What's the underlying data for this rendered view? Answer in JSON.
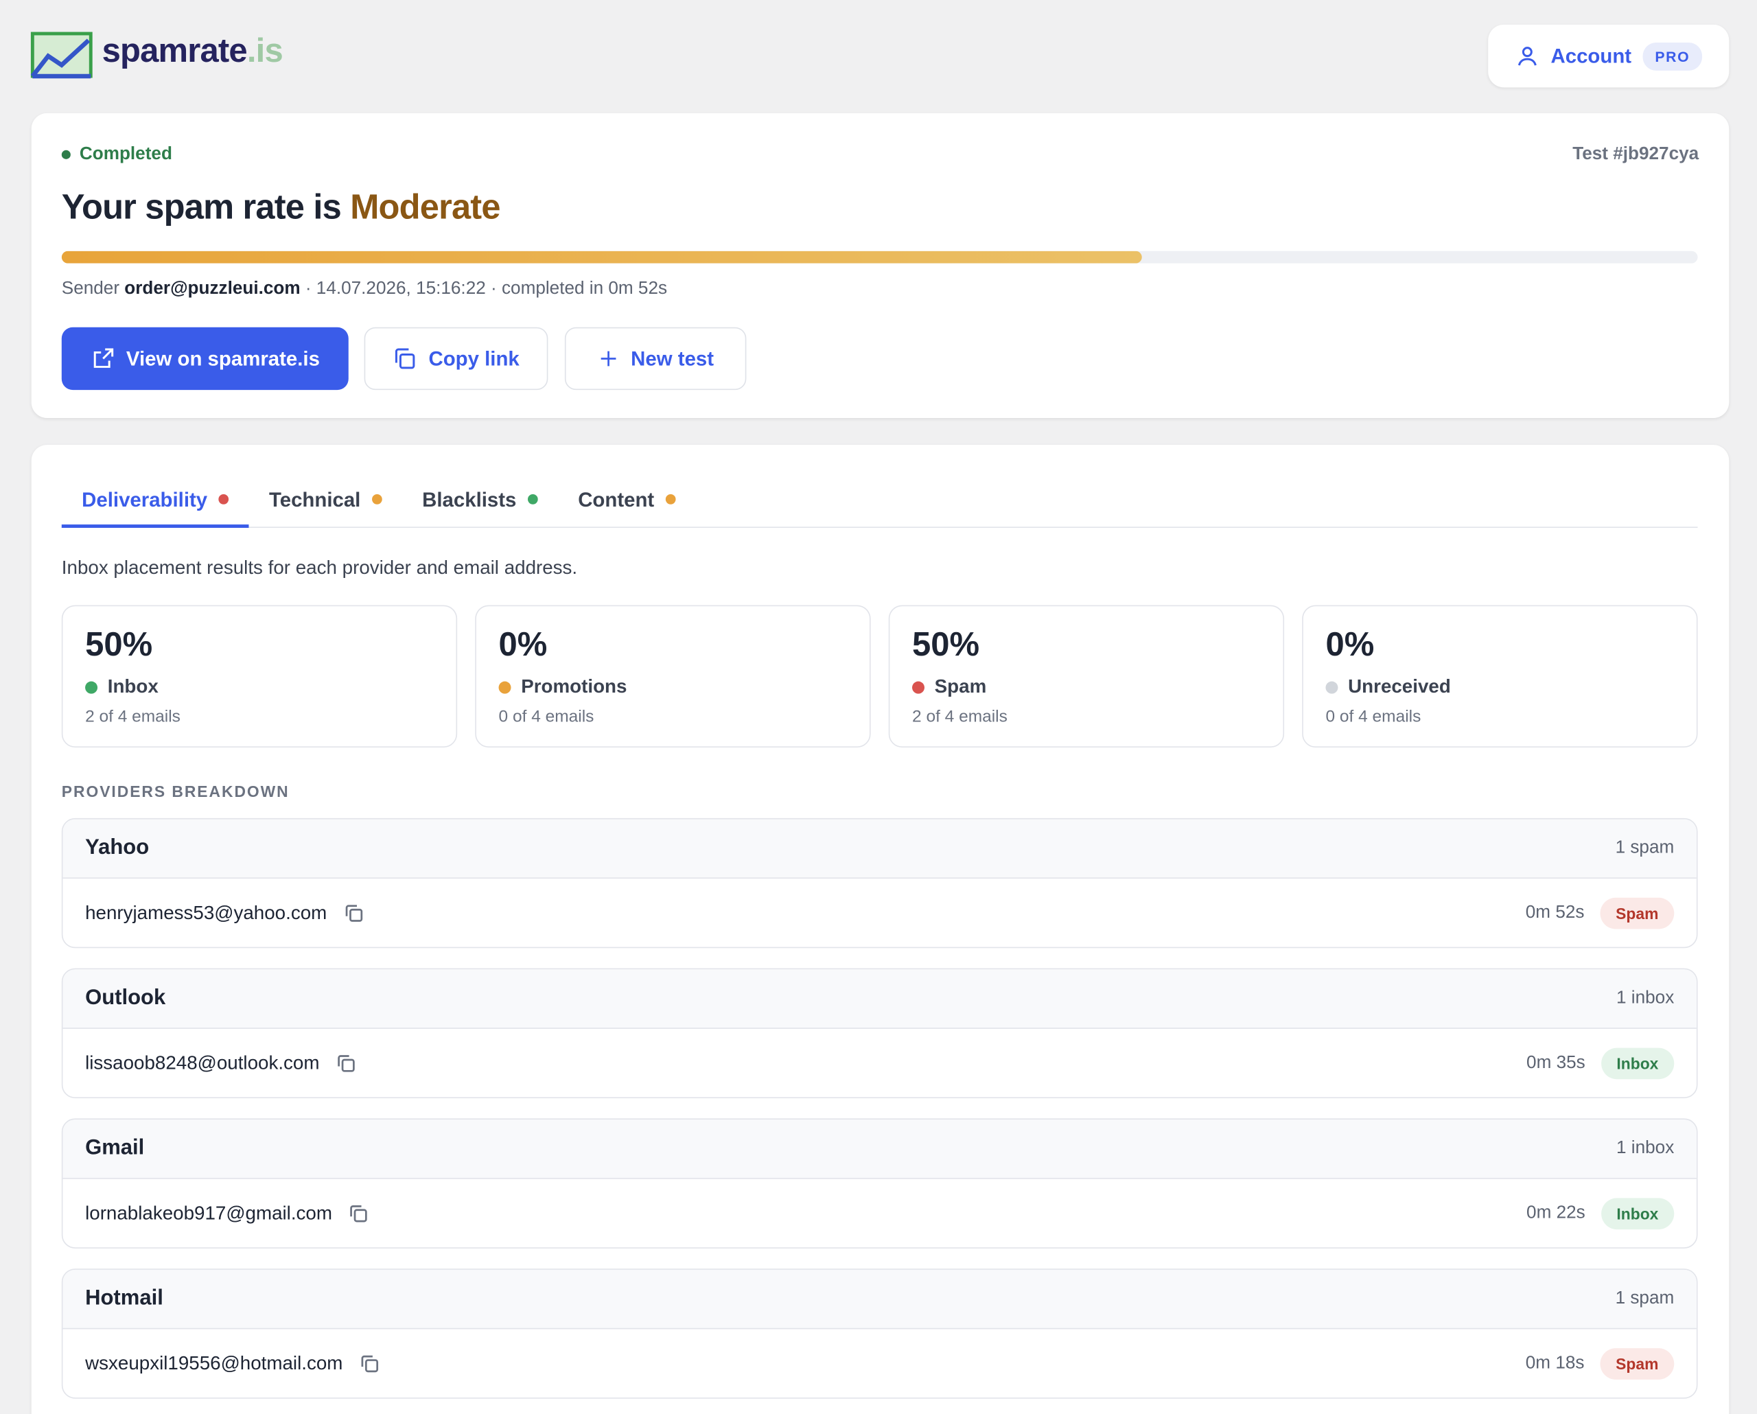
{
  "header": {
    "logo_name": "spamrate",
    "logo_tld": ".is",
    "account": "Account",
    "badge": "PRO"
  },
  "summary": {
    "status": "Completed",
    "test_id": "Test #jb927cya",
    "title": "Your spam rate is",
    "rating": "Moderate",
    "spam_rate_bar": 66,
    "sender_label": "Sender",
    "sender": "order@puzzleui.com",
    "separator": "·",
    "date": "14.07.2026, 15:16:22",
    "duration": "completed in 0m 52s",
    "buttons": [
      "View on spamrate.is",
      "Copy link",
      "New test"
    ]
  },
  "tabs": [
    {
      "name": "Deliverability",
      "color": "#d9534f"
    },
    {
      "name": "Technical",
      "color": "#e9a23b"
    },
    {
      "name": "Blacklists",
      "color": "#3fa866"
    },
    {
      "name": "Content",
      "color": "#e9a23b"
    }
  ],
  "description": "Inbox placement results for each provider and email address.",
  "stats": [
    {
      "value": "50%",
      "label": "Inbox",
      "detail": "2 of 4 emails",
      "color": "#3fa866"
    },
    {
      "value": "0%",
      "label": "Promotions",
      "detail": "0 of 4 emails",
      "color": "#e9a23b"
    },
    {
      "value": "50%",
      "label": "Spam",
      "detail": "2 of 4 emails",
      "color": "#d9534f"
    },
    {
      "value": "0%",
      "label": "Unreceived",
      "detail": "0 of 4 emails",
      "color": "#d1d5db"
    }
  ],
  "section_title": "PROVIDERS BREAKDOWN",
  "providers": [
    {
      "name": "Yahoo",
      "summary": "1 spam",
      "email": "henryjamess53@yahoo.com",
      "time": "0m 52s",
      "status": "Spam"
    },
    {
      "name": "Outlook",
      "summary": "1 inbox",
      "email": "lissaoob8248@outlook.com",
      "time": "0m 35s",
      "status": "Inbox"
    },
    {
      "name": "Gmail",
      "summary": "1 inbox",
      "email": "lornablakeob917@gmail.com",
      "time": "0m 22s",
      "status": "Inbox"
    },
    {
      "name": "Hotmail",
      "summary": "1 spam",
      "email": "wsxeupxil19556@hotmail.com",
      "time": "0m 18s",
      "status": "Spam"
    }
  ]
}
